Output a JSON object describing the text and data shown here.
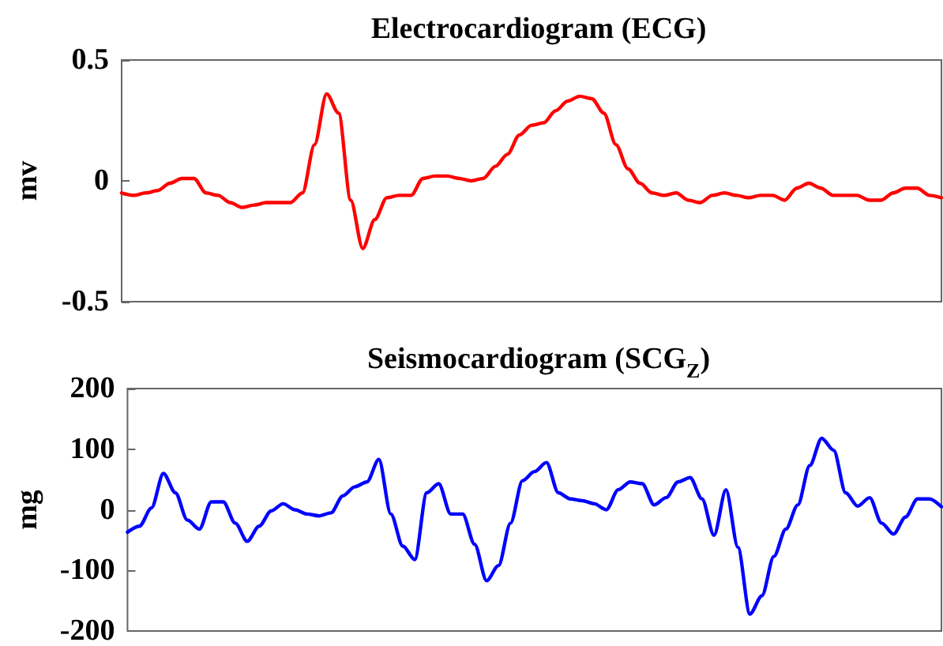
{
  "chart_data": [
    {
      "type": "line",
      "title": "Electrocardiogram (ECG)",
      "ylabel": "mv",
      "ylim": [
        -0.5,
        0.5
      ],
      "yticks": [
        -0.5,
        0,
        0.5
      ],
      "tick_labels": "y",
      "categories": [
        null,
        null,
        null,
        null,
        null,
        null,
        null,
        null,
        null,
        null,
        null,
        null,
        null,
        null,
        null,
        null,
        null,
        null,
        null,
        null,
        null,
        null,
        null,
        null,
        null,
        null,
        null,
        null,
        null,
        null,
        null,
        null,
        null,
        null,
        null,
        null,
        null,
        null,
        null,
        null,
        null,
        null,
        null,
        null,
        null,
        null,
        null,
        null,
        null,
        null,
        null,
        null,
        null,
        null,
        null,
        null,
        null,
        null,
        null,
        null,
        null,
        null,
        null,
        null,
        null,
        null,
        null,
        null,
        null
      ],
      "series": [
        {
          "color": "#ff0000",
          "values": [
            -0.05,
            -0.06,
            -0.05,
            -0.04,
            -0.01,
            0.01,
            0.01,
            -0.05,
            -0.06,
            -0.09,
            -0.11,
            -0.1,
            -0.09,
            -0.09,
            -0.09,
            -0.05,
            0.15,
            0.36,
            0.28,
            -0.08,
            -0.28,
            -0.16,
            -0.07,
            -0.06,
            -0.06,
            0.01,
            0.02,
            0.02,
            0.01,
            0,
            0.01,
            0.06,
            0.11,
            0.19,
            0.23,
            0.24,
            0.29,
            0.33,
            0.35,
            0.34,
            0.28,
            0.15,
            0.05,
            -0.01,
            -0.05,
            -0.06,
            -0.05,
            -0.08,
            -0.09,
            -0.06,
            -0.05,
            -0.06,
            -0.07,
            -0.06,
            -0.06,
            -0.08,
            -0.03,
            -0.01,
            -0.03,
            -0.06,
            -0.06,
            -0.06,
            -0.08,
            -0.08,
            -0.05,
            -0.03,
            -0.03,
            -0.06,
            -0.07
          ]
        }
      ]
    },
    {
      "type": "line",
      "title": "Seismocardiogram (SCG$_{Z}$)",
      "ylabel": "mg",
      "ylim": [
        -200,
        200
      ],
      "yticks": [
        -200,
        -100,
        0,
        100,
        200
      ],
      "tick_labels": "y",
      "categories": [
        null,
        null,
        null,
        null,
        null,
        null,
        null,
        null,
        null,
        null,
        null,
        null,
        null,
        null,
        null,
        null,
        null,
        null,
        null,
        null,
        null,
        null,
        null,
        null,
        null,
        null,
        null,
        null,
        null,
        null,
        null,
        null,
        null,
        null,
        null,
        null,
        null,
        null,
        null,
        null,
        null,
        null,
        null,
        null,
        null,
        null,
        null,
        null,
        null,
        null,
        null,
        null,
        null,
        null,
        null,
        null,
        null,
        null,
        null,
        null,
        null,
        null,
        null,
        null,
        null,
        null,
        null,
        null,
        null
      ],
      "series": [
        {
          "color": "#0000ff",
          "values": [
            -37,
            -27,
            3,
            60,
            28,
            -17,
            -32,
            13,
            13,
            -22,
            -52,
            -27,
            -2,
            10,
            0,
            -7,
            -10,
            -5,
            23,
            38,
            46,
            83,
            -7,
            -60,
            -82,
            28,
            43,
            -7,
            -7,
            -57,
            -117,
            -92,
            -22,
            48,
            63,
            78,
            28,
            18,
            15,
            10,
            0,
            33,
            46,
            43,
            8,
            20,
            46,
            53,
            18,
            -42,
            33,
            -62,
            -172,
            -142,
            -77,
            -32,
            8,
            73,
            118,
            98,
            28,
            6,
            20,
            -22,
            -40,
            -12,
            18,
            18,
            5
          ]
        }
      ]
    }
  ]
}
